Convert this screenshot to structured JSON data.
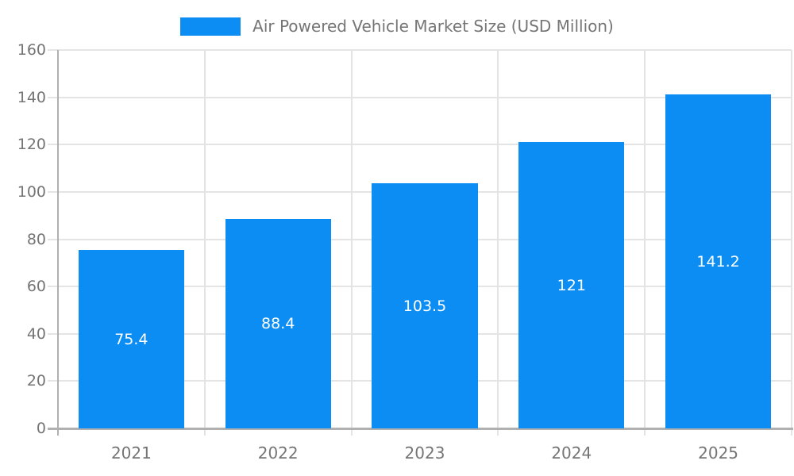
{
  "chart_data": {
    "type": "bar",
    "title": "Air Powered Vehicle Market Size (USD Million)",
    "categories": [
      "2021",
      "2022",
      "2023",
      "2024",
      "2025"
    ],
    "values": [
      75.4,
      88.4,
      103.5,
      121,
      141.2
    ],
    "labels": [
      "75.4",
      "88.4",
      "103.5",
      "121",
      "141.2"
    ],
    "xlabel": "",
    "ylabel": "",
    "ylim": [
      0,
      160
    ],
    "ytick_step": 20,
    "ytick_labels": [
      "0",
      "20",
      "40",
      "60",
      "80",
      "100",
      "120",
      "140",
      "160"
    ],
    "grid": true,
    "legend_position": "top-center",
    "colors": {
      "bar": "#0b8df4",
      "text": "#757575",
      "grid": "#e4e4e4",
      "axis": "#b0b0b0",
      "bar_label": "#ffffff",
      "background": "#ffffff"
    }
  }
}
